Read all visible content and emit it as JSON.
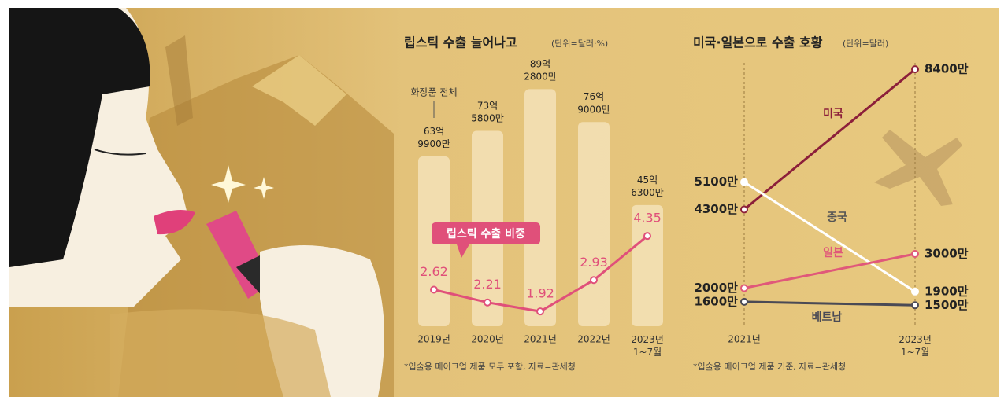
{
  "chart_data": [
    {
      "type": "bar",
      "title": "립스틱 수출 늘어나고",
      "subtitle": "(단위=달러·%)",
      "annotation": "화장품 전체",
      "footnote": "*입술용 메이크업 제품 모두 포함, 자료=관세청",
      "categories": [
        "2019년",
        "2020년",
        "2021년",
        "2022년",
        "2023년\n1~7월"
      ],
      "ylim": [
        0,
        9000000000
      ],
      "y2lim": [
        0,
        6
      ],
      "series": [
        {
          "name": "화장품 전체",
          "color": "#f4e2b8",
          "values": [
            6399000000,
            7358000000,
            8928000000,
            7690000000,
            4563000000
          ],
          "value_labels": [
            "63억\n9900만",
            "73억\n5800만",
            "89억\n2800만",
            "76억\n9000만",
            "45억\n6300만"
          ]
        },
        {
          "name": "립스틱 수출 비중",
          "color": "#e0507a",
          "type": "line",
          "axis": "y2",
          "values": [
            2.62,
            2.21,
            1.92,
            2.93,
            4.35
          ]
        }
      ]
    },
    {
      "type": "line",
      "title": "미국·일본으로 수출 호황",
      "subtitle": "(단위=달러)",
      "footnote": "*입술용 메이크업 제품 기준, 자료=관세청",
      "categories": [
        "2021년",
        "2023년\n1~7월"
      ],
      "ylim": [
        10000000,
        90000000
      ],
      "series": [
        {
          "name": "미국",
          "color": "#8c1f3a",
          "values": [
            43000000,
            84000000
          ],
          "value_labels": [
            "4300만",
            "8400만"
          ]
        },
        {
          "name": "중국",
          "color": "#ffffff",
          "values": [
            51000000,
            19000000
          ],
          "value_labels": [
            "5100만",
            "1900만"
          ]
        },
        {
          "name": "일본",
          "color": "#e0587a",
          "values": [
            20000000,
            30000000
          ],
          "value_labels": [
            "2000만",
            "3000만"
          ]
        },
        {
          "name": "베트남",
          "color": "#4a4a55",
          "values": [
            16000000,
            15000000
          ],
          "value_labels": [
            "1600만",
            "1500만"
          ]
        }
      ]
    }
  ]
}
